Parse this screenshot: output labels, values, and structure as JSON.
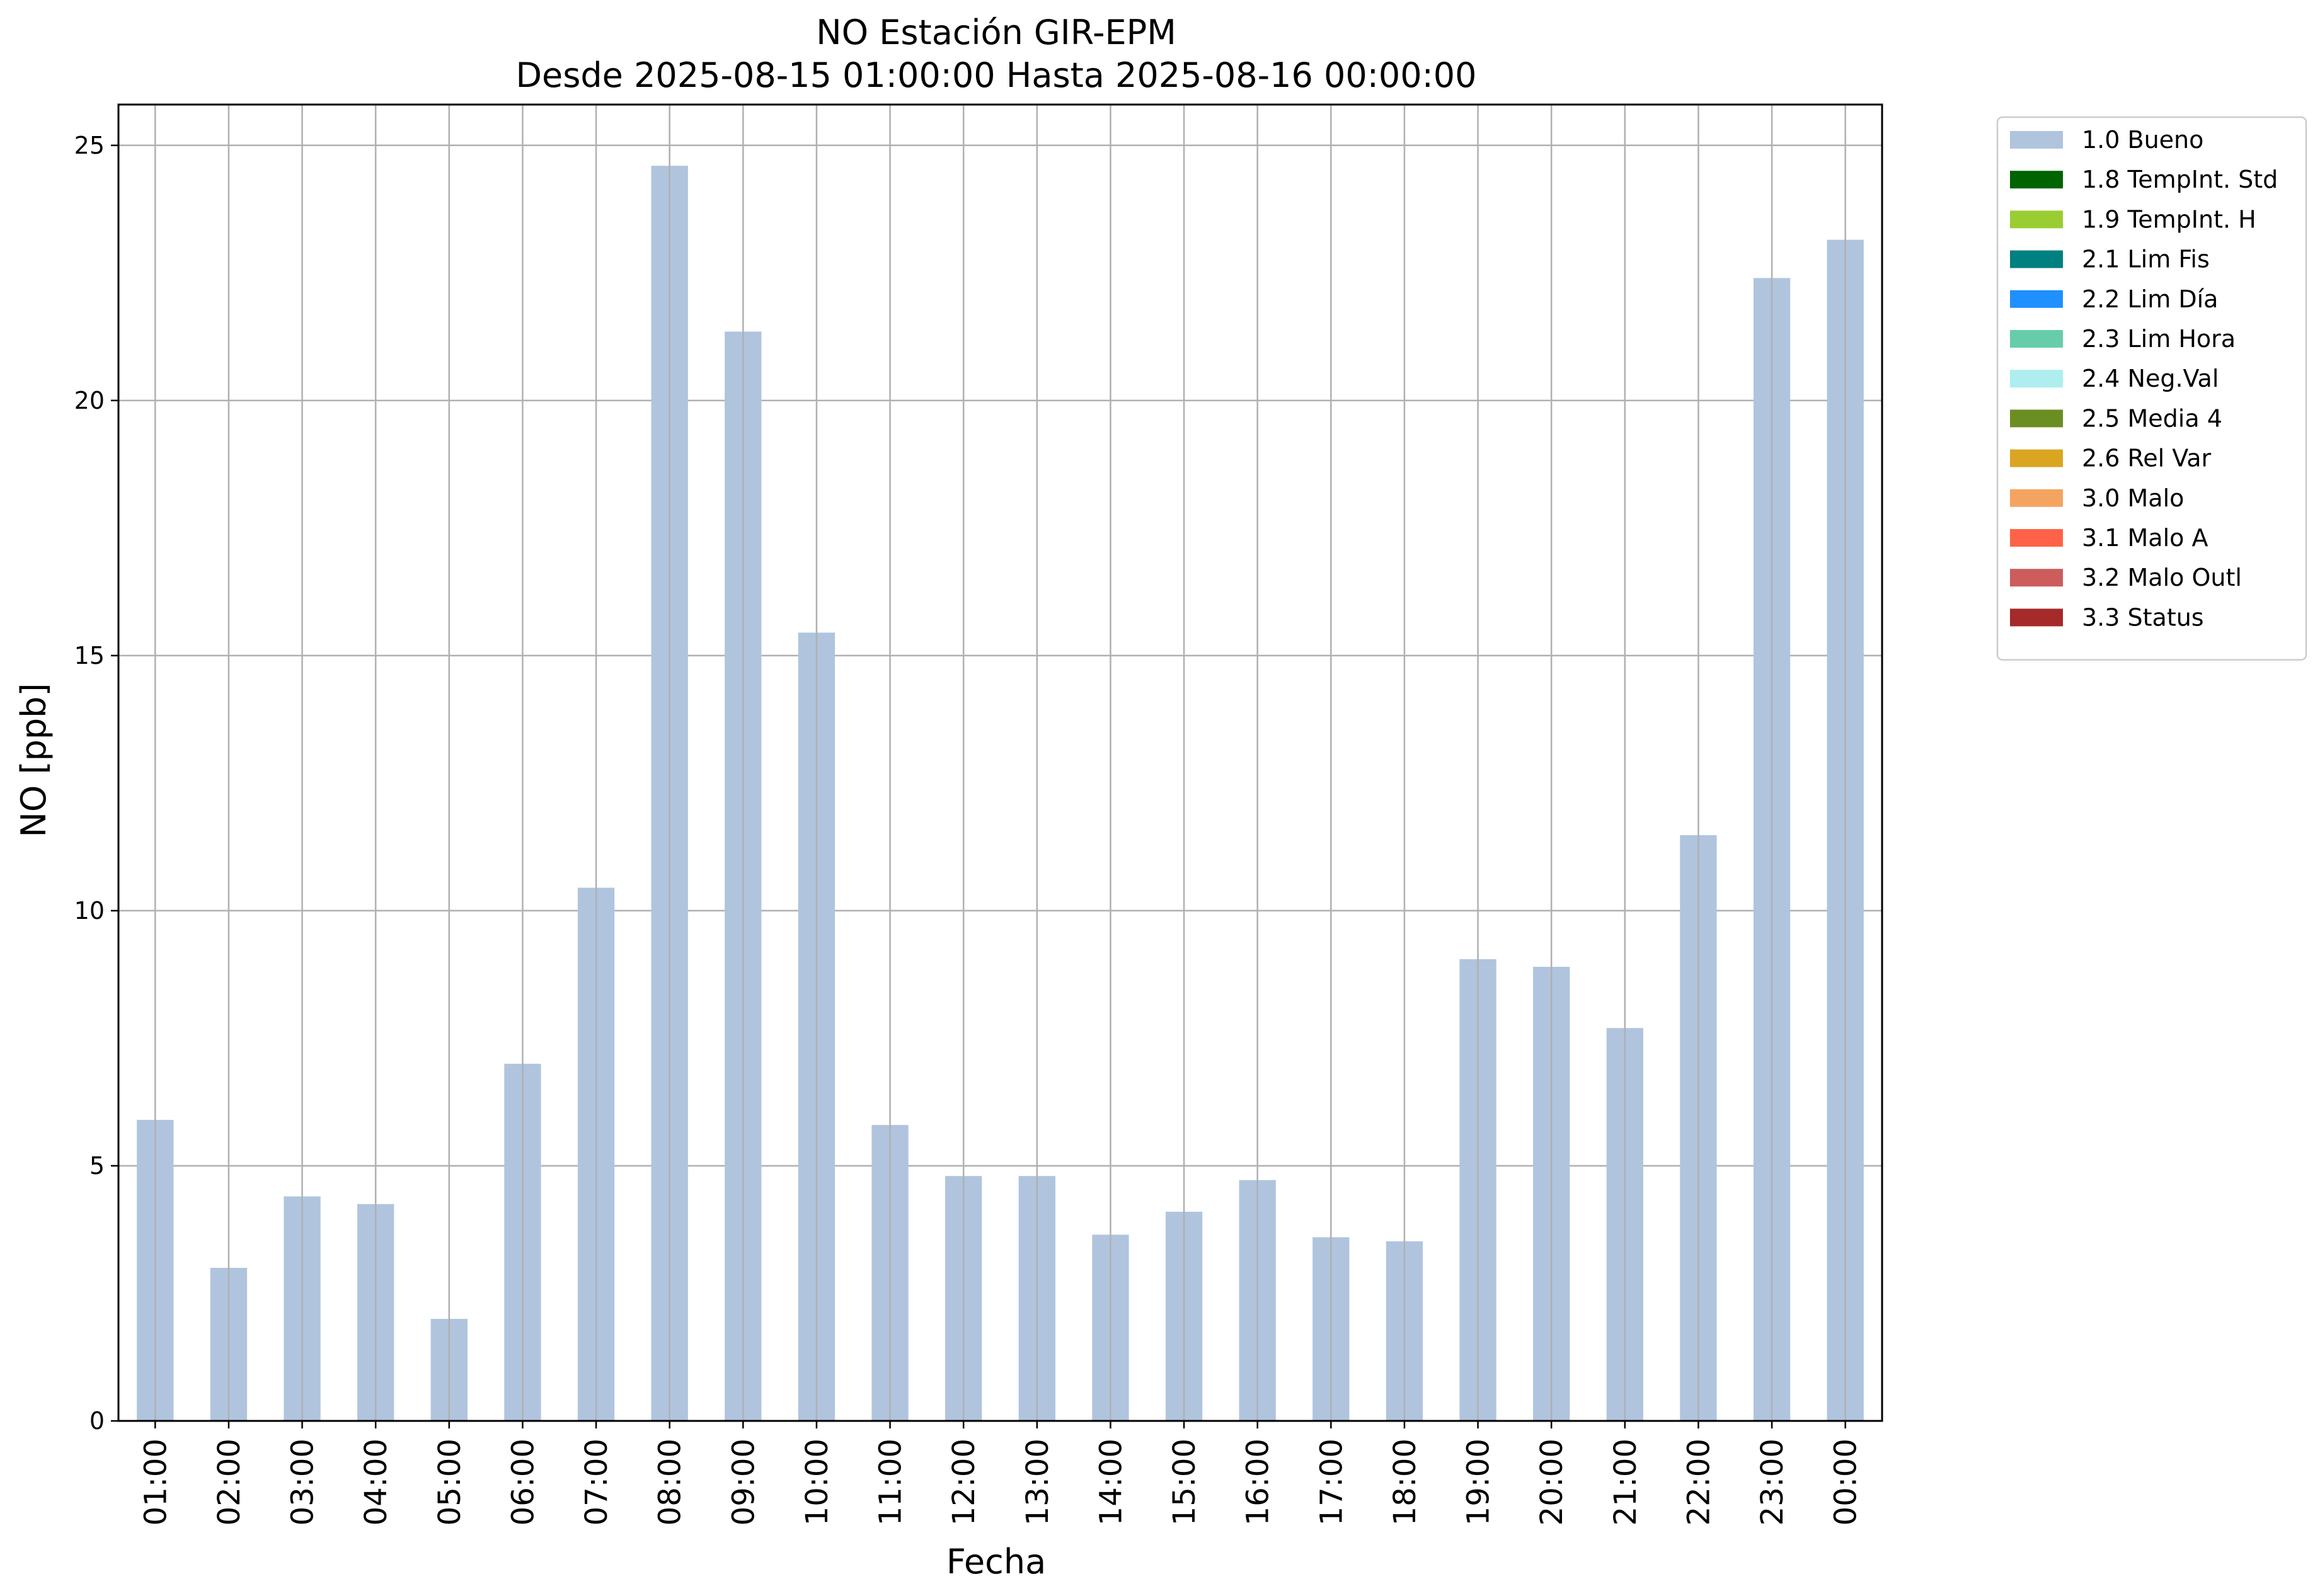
{
  "chart_data": {
    "type": "bar",
    "title": "NO Estación GIR-EPM",
    "subtitle": "Desde 2025-08-15 01:00:00 Hasta 2025-08-16 00:00:00",
    "xlabel": "Fecha",
    "ylabel": "NO [ppb]",
    "ylim": [
      0,
      25.8
    ],
    "yticks": [
      0,
      5,
      10,
      15,
      20,
      25
    ],
    "grid": true,
    "legend_position": "outside-top-right",
    "categories": [
      "01:00",
      "02:00",
      "03:00",
      "04:00",
      "05:00",
      "06:00",
      "07:00",
      "08:00",
      "09:00",
      "10:00",
      "11:00",
      "12:00",
      "13:00",
      "14:00",
      "15:00",
      "16:00",
      "17:00",
      "18:00",
      "19:00",
      "20:00",
      "21:00",
      "22:00",
      "23:00",
      "00:00"
    ],
    "series": [
      {
        "name": "1.0 Bueno",
        "color": "#b0c4de",
        "values": [
          5.9,
          3.0,
          4.4,
          4.25,
          2.0,
          7.0,
          10.45,
          24.6,
          21.35,
          15.45,
          5.8,
          4.8,
          4.8,
          3.65,
          4.1,
          4.72,
          3.6,
          3.52,
          9.05,
          8.9,
          7.7,
          11.48,
          22.4,
          23.15
        ]
      }
    ],
    "legend": [
      {
        "label": "1.0 Bueno",
        "color": "#b0c4de"
      },
      {
        "label": "1.8 TempInt. Std",
        "color": "#006400"
      },
      {
        "label": "1.9 TempInt. H",
        "color": "#9acd32"
      },
      {
        "label": "2.1 Lim Fis",
        "color": "#008080"
      },
      {
        "label": "2.2 Lim Día",
        "color": "#1e90ff"
      },
      {
        "label": "2.3 Lim Hora",
        "color": "#66cdaa"
      },
      {
        "label": "2.4 Neg.Val",
        "color": "#afeeee"
      },
      {
        "label": "2.5 Media 4",
        "color": "#6b8e23"
      },
      {
        "label": "2.6 Rel Var",
        "color": "#daa520"
      },
      {
        "label": "3.0 Malo",
        "color": "#f4a460"
      },
      {
        "label": "3.1 Malo A",
        "color": "#ff6347"
      },
      {
        "label": "3.2 Malo Outl",
        "color": "#cd5c5c"
      },
      {
        "label": "3.3 Status",
        "color": "#a52a2a"
      }
    ]
  }
}
